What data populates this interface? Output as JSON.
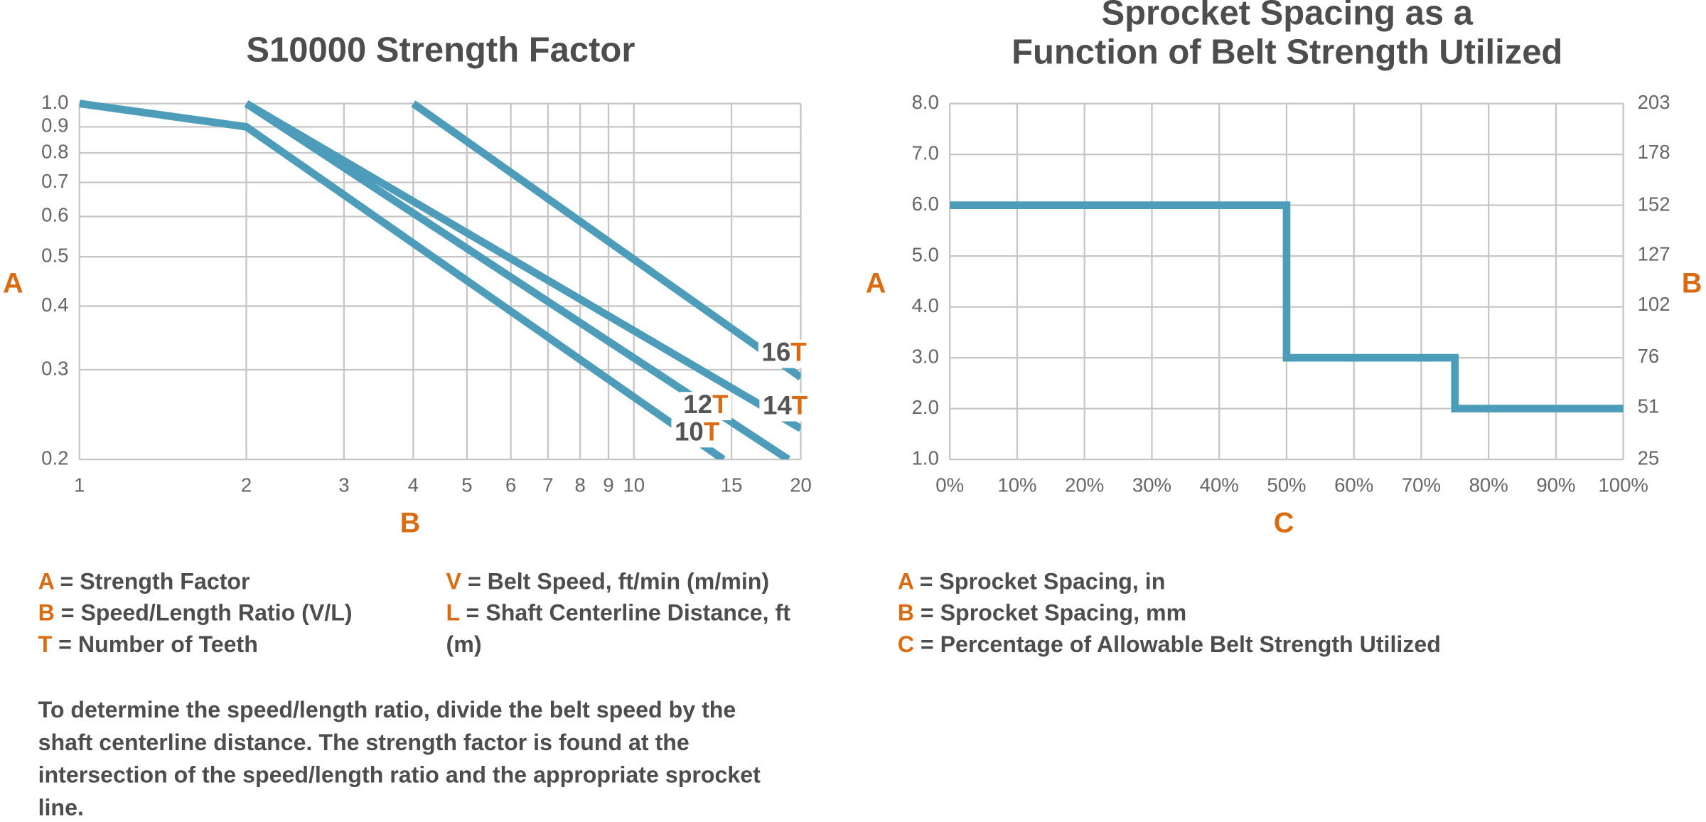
{
  "chart_data": [
    {
      "type": "line",
      "title": [
        "S10000 Strength Factor"
      ],
      "xlabel": "B",
      "ylabel": "A",
      "xscale": "log",
      "yscale": "log",
      "grid": true,
      "xlim": [
        1,
        20
      ],
      "ylim": [
        0.2,
        1.0
      ],
      "xticks": [
        1,
        2,
        3,
        4,
        5,
        6,
        7,
        8,
        9,
        10,
        15,
        20
      ],
      "yticks": [
        {
          "value": 1.0,
          "label": "1.0"
        },
        0.9,
        0.8,
        0.7,
        0.6,
        0.5,
        0.4,
        0.3,
        0.2
      ],
      "series": [
        {
          "name": "10T",
          "color": "#4d9cb9",
          "x": [
            1,
            2,
            14.5
          ],
          "values": [
            1.0,
            0.9,
            0.2
          ]
        },
        {
          "name": "12T",
          "color": "#4d9cb9",
          "x": [
            2,
            19
          ],
          "values": [
            1.0,
            0.2
          ]
        },
        {
          "name": "14T",
          "color": "#4d9cb9",
          "x": [
            2,
            20
          ],
          "values": [
            1.0,
            0.23
          ]
        },
        {
          "name": "16T",
          "color": "#4d9cb9",
          "x": [
            4,
            20
          ],
          "values": [
            1.0,
            0.29
          ]
        }
      ]
    },
    {
      "type": "step",
      "title": [
        "Sprocket Spacing as a",
        "Function of Belt Strength Utilized"
      ],
      "xlabel": "C",
      "ylabel": "A",
      "y2label": "B",
      "grid": true,
      "xlim": [
        0,
        100
      ],
      "ylim": [
        1,
        8
      ],
      "y2lim": [
        25,
        203
      ],
      "xticks": [
        {
          "value": 0,
          "label": "0%"
        },
        {
          "value": 10,
          "label": "10%"
        },
        {
          "value": 20,
          "label": "20%"
        },
        {
          "value": 30,
          "label": "30%"
        },
        {
          "value": 40,
          "label": "40%"
        },
        {
          "value": 50,
          "label": "50%"
        },
        {
          "value": 60,
          "label": "60%"
        },
        {
          "value": 70,
          "label": "70%"
        },
        {
          "value": 80,
          "label": "80%"
        },
        {
          "value": 90,
          "label": "90%"
        },
        {
          "value": 100,
          "label": "100%"
        }
      ],
      "yticks": [
        {
          "value": 1,
          "label": "1.0"
        },
        {
          "value": 2,
          "label": "2.0"
        },
        {
          "value": 3,
          "label": "3.0"
        },
        {
          "value": 4,
          "label": "4.0"
        },
        {
          "value": 5,
          "label": "5.0"
        },
        {
          "value": 6,
          "label": "6.0"
        },
        {
          "value": 7,
          "label": "7.0"
        },
        {
          "value": 8,
          "label": "8.0"
        }
      ],
      "y2ticks": [
        25,
        51,
        76,
        102,
        127,
        152,
        178,
        203
      ],
      "series": [
        {
          "color": "#4d9cb9",
          "x": [
            0,
            50,
            50,
            75,
            75,
            100
          ],
          "values": [
            6,
            6,
            3,
            3,
            2,
            2
          ]
        }
      ]
    }
  ],
  "legends": [
    [
      {
        "key": "A",
        "text": "= Strength Factor"
      },
      {
        "key": "B",
        "text": "= Speed/Length Ratio (V/L)"
      },
      {
        "key": "T",
        "text": "= Number of Teeth"
      }
    ],
    [
      {
        "key": "V",
        "text": "= Belt Speed, ft/min (m/min)"
      },
      {
        "key": "L",
        "text": "= Shaft Centerline Distance, ft (m)"
      }
    ],
    [
      {
        "key": "A",
        "text": "= Sprocket Spacing, in"
      },
      {
        "key": "B",
        "text": "= Sprocket Spacing, mm"
      },
      {
        "key": "C",
        "text": "= Percentage of Allowable Belt Strength Utilized"
      }
    ]
  ],
  "note": "To determine the speed/length ratio, divide the belt speed by the shaft centerline distance. The strength factor is found at the intersection of the speed/length ratio and the appropriate sprocket line."
}
